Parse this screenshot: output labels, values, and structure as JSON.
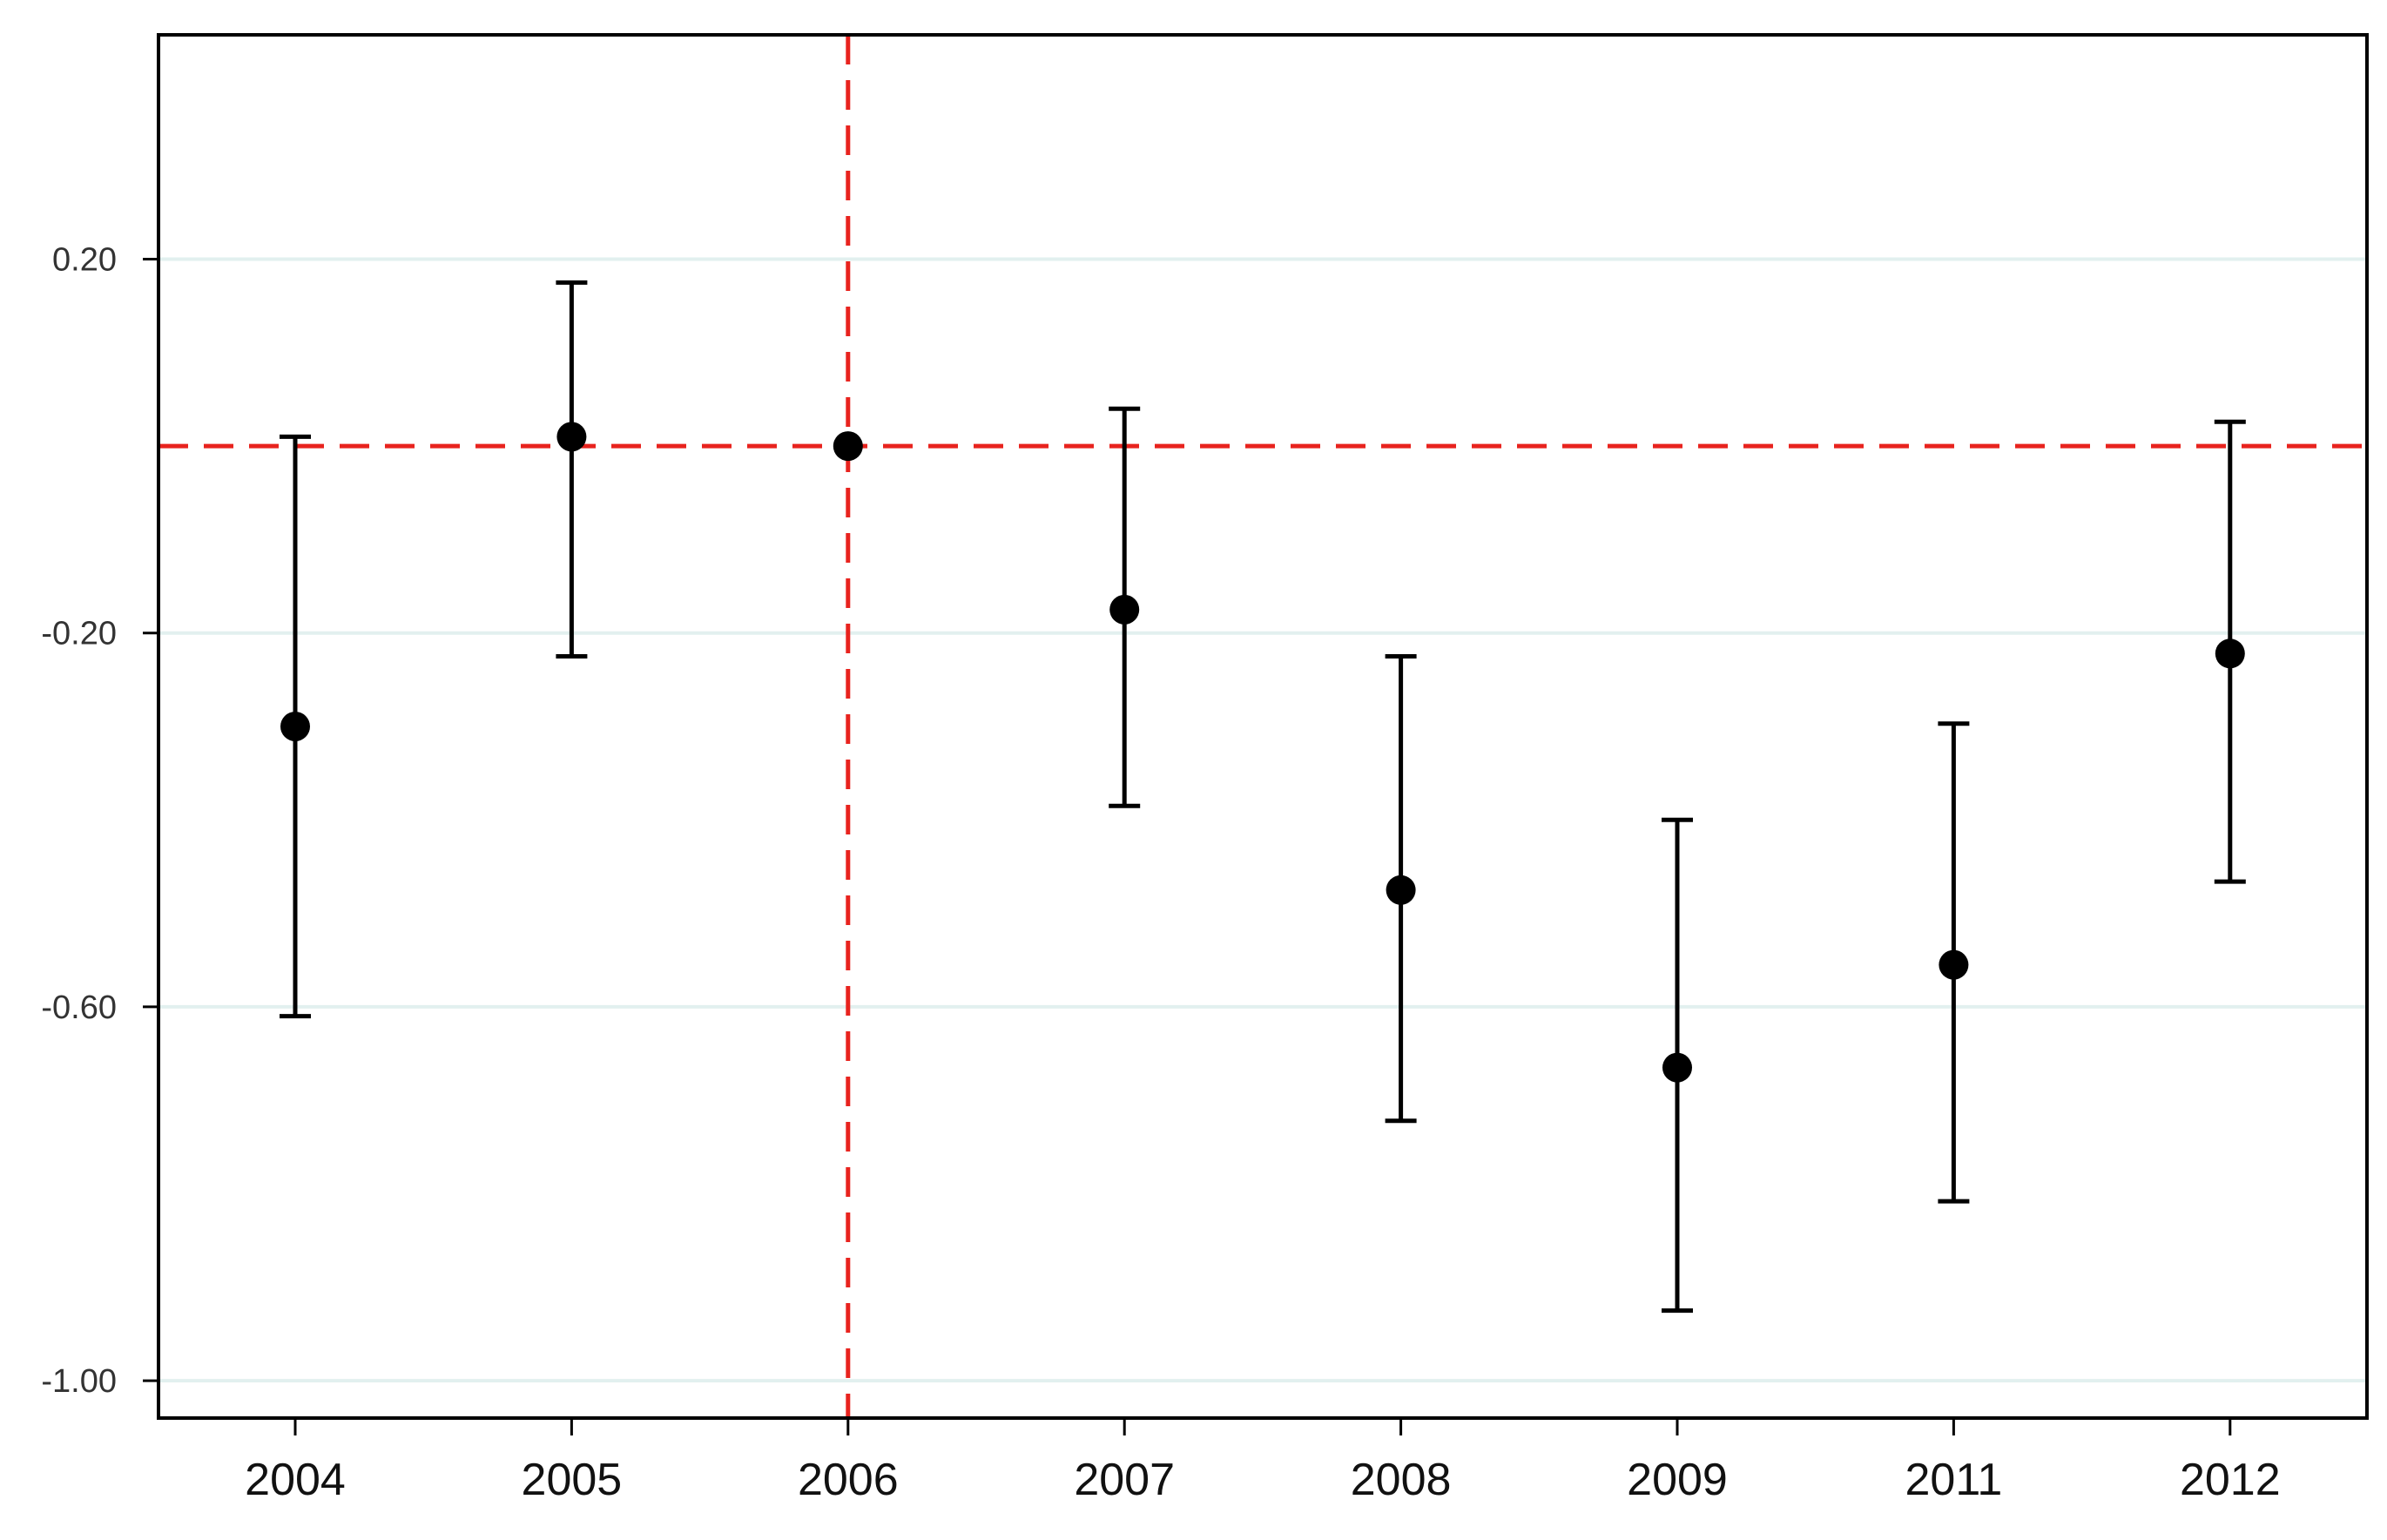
{
  "chart_data": {
    "type": "scatter",
    "subtype": "coefficient plot with confidence intervals",
    "title": "",
    "xlabel": "",
    "ylabel": "",
    "categories": [
      "2004",
      "2005",
      "2006",
      "2007",
      "2008",
      "2009",
      "2011",
      "2012"
    ],
    "series": [
      {
        "values": [
          -0.3,
          0.01,
          0.0,
          -0.175,
          -0.475,
          -0.665,
          -0.555,
          -0.222
        ],
        "ci_lower": [
          -0.61,
          -0.225,
          null,
          -0.385,
          -0.722,
          -0.925,
          -0.808,
          -0.466
        ],
        "ci_upper": [
          0.01,
          0.175,
          null,
          0.04,
          -0.225,
          -0.4,
          -0.297,
          0.026
        ]
      }
    ],
    "ylim": [
      -1.04,
      0.44
    ],
    "yticks": [
      0.2,
      -0.2,
      -0.6,
      -1.0
    ],
    "ytick_labels": [
      "0.20",
      "-0.20",
      "-0.60",
      "-1.00"
    ],
    "reference_lines": {
      "horizontal_y": 0.0,
      "vertical_x": "2006",
      "style": "dashed",
      "color": "#e8231e"
    },
    "grid": "horizontal",
    "legend": "none",
    "colors": {
      "points": "#000000",
      "errorbars": "#000000",
      "grid": "#e2f0ef",
      "reference": "#e8231e",
      "frame": "#000000"
    }
  }
}
